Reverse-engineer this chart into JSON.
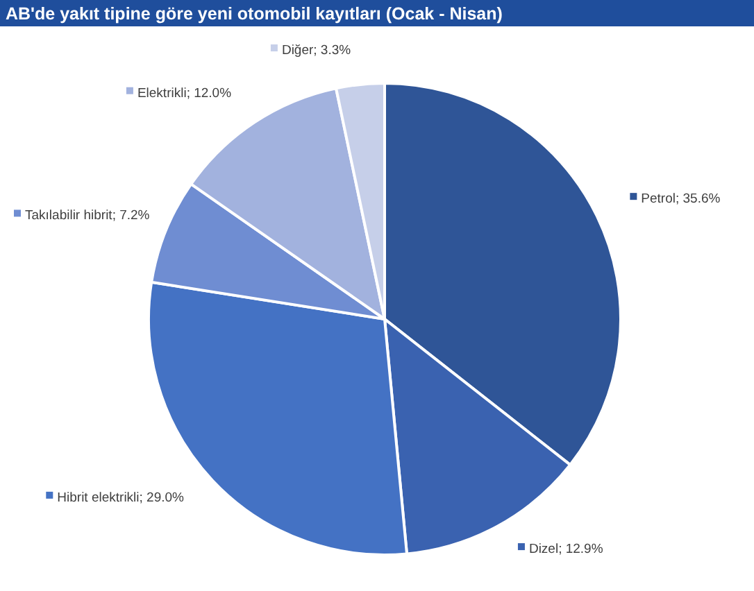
{
  "chart_data": {
    "type": "pie",
    "title": "AB'de yakıt tipine göre yeni otomobil kayıtları (Ocak - Nisan)",
    "categories": [
      "Petrol",
      "Dizel",
      "Hibrit elektrikli",
      "Takılabilir hibrit",
      "Elektrikli",
      "Diğer"
    ],
    "values": [
      35.6,
      12.9,
      29.0,
      7.2,
      12.0,
      3.3
    ],
    "value_labels": [
      "35.6%",
      "12.9%",
      "29.0%",
      "7.2%",
      "12.0%",
      "3.3%"
    ],
    "colors": [
      "#2f5597",
      "#3a62b0",
      "#4472c4",
      "#6f8dd2",
      "#a2b2de",
      "#c6cfe9"
    ],
    "legend": true
  }
}
